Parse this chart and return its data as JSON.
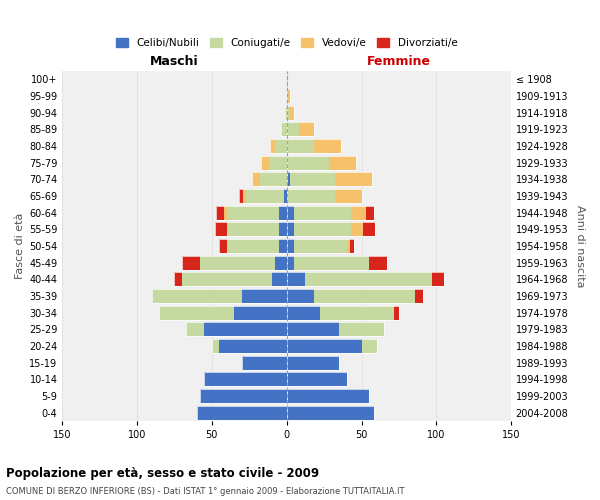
{
  "age_groups": [
    "0-4",
    "5-9",
    "10-14",
    "15-19",
    "20-24",
    "25-29",
    "30-34",
    "35-39",
    "40-44",
    "45-49",
    "50-54",
    "55-59",
    "60-64",
    "65-69",
    "70-74",
    "75-79",
    "80-84",
    "85-89",
    "90-94",
    "95-99",
    "100+"
  ],
  "birth_years": [
    "2004-2008",
    "1999-2003",
    "1994-1998",
    "1989-1993",
    "1984-1988",
    "1979-1983",
    "1974-1978",
    "1969-1973",
    "1964-1968",
    "1959-1963",
    "1954-1958",
    "1949-1953",
    "1944-1948",
    "1939-1943",
    "1934-1938",
    "1929-1933",
    "1924-1928",
    "1919-1923",
    "1914-1918",
    "1909-1913",
    "≤ 1908"
  ],
  "male": {
    "celibi": [
      60,
      58,
      55,
      30,
      45,
      55,
      35,
      30,
      10,
      8,
      5,
      5,
      5,
      2,
      0,
      0,
      0,
      0,
      0,
      0,
      0
    ],
    "coniugati": [
      0,
      0,
      0,
      0,
      5,
      12,
      50,
      60,
      60,
      50,
      35,
      35,
      35,
      25,
      18,
      12,
      8,
      3,
      1,
      0,
      0
    ],
    "vedovi": [
      0,
      0,
      0,
      0,
      0,
      0,
      0,
      0,
      0,
      0,
      0,
      0,
      2,
      2,
      5,
      5,
      3,
      1,
      0,
      0,
      0
    ],
    "divorziati": [
      0,
      0,
      0,
      0,
      0,
      0,
      0,
      0,
      5,
      12,
      5,
      8,
      5,
      3,
      0,
      0,
      0,
      0,
      0,
      0,
      0
    ]
  },
  "female": {
    "nubili": [
      58,
      55,
      40,
      35,
      50,
      35,
      22,
      18,
      12,
      5,
      5,
      5,
      5,
      0,
      2,
      0,
      0,
      0,
      0,
      0,
      0
    ],
    "coniugate": [
      0,
      0,
      0,
      0,
      10,
      30,
      50,
      68,
      85,
      50,
      35,
      38,
      38,
      32,
      30,
      28,
      18,
      8,
      2,
      0,
      0
    ],
    "vedove": [
      0,
      0,
      0,
      0,
      0,
      0,
      0,
      0,
      0,
      0,
      2,
      8,
      10,
      18,
      25,
      18,
      18,
      10,
      3,
      2,
      0
    ],
    "divorziate": [
      0,
      0,
      0,
      0,
      0,
      0,
      3,
      5,
      8,
      12,
      3,
      8,
      5,
      0,
      0,
      0,
      0,
      0,
      0,
      0,
      0
    ]
  },
  "colors": {
    "celibi_nubili": "#4472C4",
    "coniugati": "#C5D9A0",
    "vedovi": "#F5C26B",
    "divorziati": "#D9261C"
  },
  "title": "Popolazione per età, sesso e stato civile - 2009",
  "subtitle": "COMUNE DI BERZO INFERIORE (BS) - Dati ISTAT 1° gennaio 2009 - Elaborazione TUTTAITALIA.IT",
  "xlabel_left": "Maschi",
  "xlabel_right": "Femmine",
  "ylabel_left": "Fasce di età",
  "ylabel_right": "Anni di nascita",
  "xlim": 150,
  "bg_color": "#ffffff",
  "plot_bg_color": "#f0f0f0",
  "grid_color": "#cccccc",
  "legend_labels": [
    "Celibi/Nubili",
    "Coniugati/e",
    "Vedovi/e",
    "Divorziati/e"
  ]
}
